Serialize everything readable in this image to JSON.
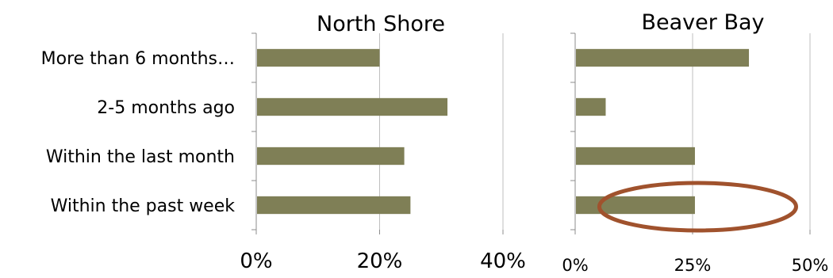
{
  "chart_data": [
    {
      "type": "bar",
      "orientation": "horizontal",
      "title": "North Shore",
      "categories": [
        "More than 6 months…",
        "2-5 months ago",
        "Within the last month",
        "Within the past week"
      ],
      "values": [
        0.2,
        0.31,
        0.24,
        0.25
      ],
      "xlim": [
        0,
        0.4
      ],
      "tick_values": [
        0,
        0.2,
        0.4
      ],
      "tick_labels": [
        "0%",
        "20%",
        "40%"
      ],
      "bar_color": "#7f7f56",
      "grid": true
    },
    {
      "type": "bar",
      "orientation": "horizontal",
      "title": "Beaver Bay",
      "categories": [
        "More than 6 months…",
        "2-5 months ago",
        "Within the last month",
        "Within the past week"
      ],
      "values": [
        0.37,
        0.065,
        0.255,
        0.255
      ],
      "xlim": [
        0,
        0.5
      ],
      "tick_values": [
        0,
        0.25,
        0.5
      ],
      "tick_labels": [
        "0%",
        "25%",
        "50%"
      ],
      "bar_color": "#7f7f56",
      "grid": true,
      "highlight": {
        "category": "Within the past week",
        "shape": "ellipse",
        "color": "#a0522d"
      }
    }
  ]
}
